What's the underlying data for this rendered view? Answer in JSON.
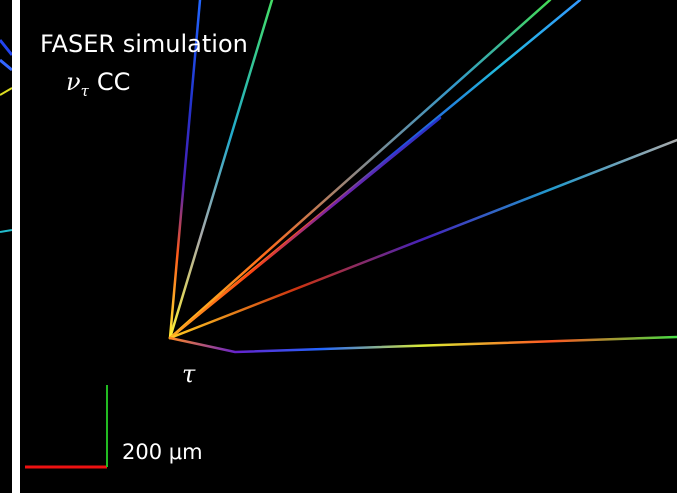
{
  "header": {
    "title": "FASER simulation",
    "process": {
      "particle": "ν",
      "subscript": "τ",
      "label": "CC"
    }
  },
  "annotations": {
    "vertex_label": "τ",
    "scale_label": "200 μm"
  }
}
